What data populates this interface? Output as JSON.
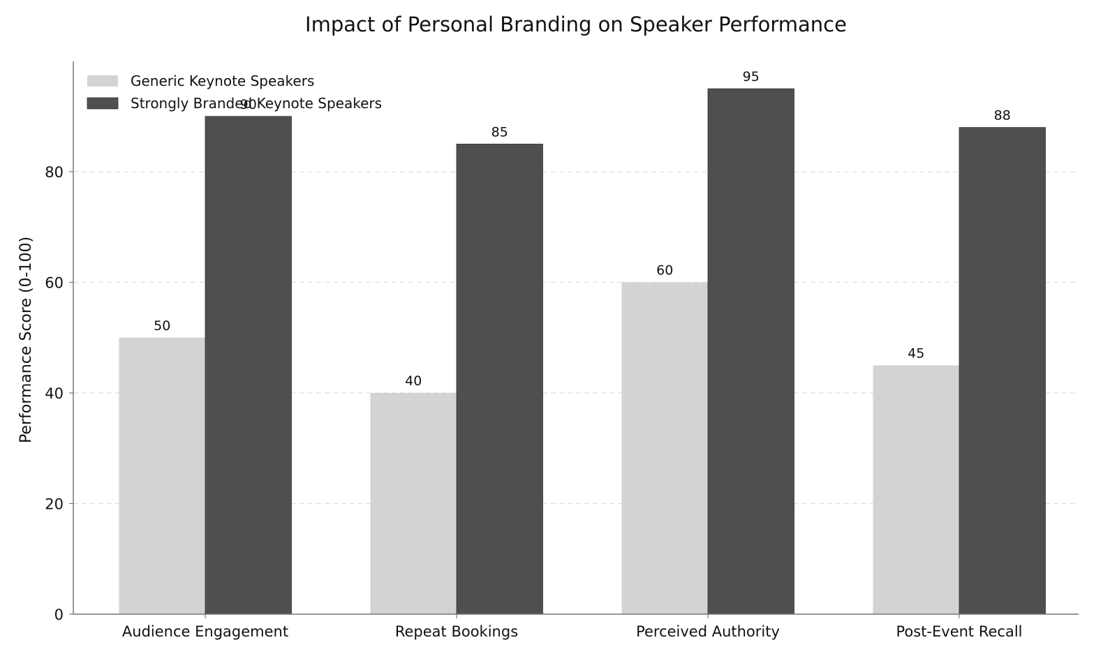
{
  "chart_data": {
    "type": "bar",
    "title": "Impact of Personal Branding on Speaker Performance",
    "xlabel": "",
    "ylabel": "Performance Score (0-100)",
    "categories": [
      "Audience Engagement",
      "Repeat Bookings",
      "Perceived Authority",
      "Post-Event Recall"
    ],
    "series": [
      {
        "name": "Generic Keynote Speakers",
        "values": [
          50,
          40,
          60,
          45
        ],
        "color": "#d3d3d3"
      },
      {
        "name": "Strongly Branded Keynote Speakers",
        "values": [
          90,
          85,
          95,
          88
        ],
        "color": "#4f4f4f"
      }
    ],
    "ylim": [
      0,
      100
    ],
    "yticks": [
      0,
      20,
      40,
      60,
      80
    ],
    "grid": {
      "y": true,
      "style": "dashed",
      "color": "#dddddd"
    },
    "legend": {
      "position": "upper left"
    },
    "data_labels": true
  }
}
